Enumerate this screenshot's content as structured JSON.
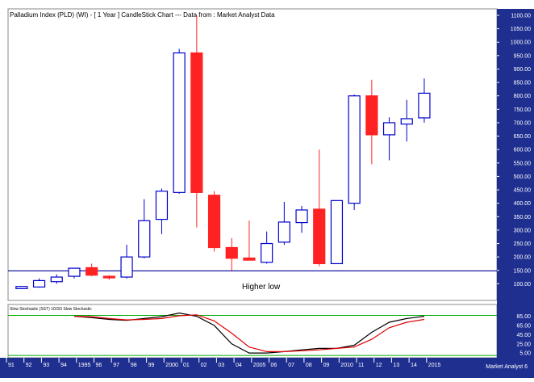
{
  "title": "Palladium Index (PLD) (WI) -  [ 1 Year ] CandleStick Chart --- Data from : Market Analyst Data",
  "annotation": "Higher low",
  "stochastic_title": "Slow Stochastic (SST) 10/3/3 Slow Stochastic",
  "footer_label": "Market Analyst 6",
  "colors": {
    "up": "#0000cc",
    "down": "#ff2222",
    "axis_bg": "#1f2f8f",
    "axis_text": "#ffffff",
    "hline": "#000099",
    "k_line": "#000000",
    "d_line": "#e00000",
    "level_line": "#00aa00"
  },
  "chart_data": [
    {
      "type": "candlestick",
      "ylim": [
        50,
        1100
      ],
      "y_ticks": [
        "1100.00",
        "1050.00",
        "1000.00",
        "950.00",
        "900.00",
        "850.00",
        "800.00",
        "750.00",
        "700.00",
        "650.00",
        "600.00",
        "550.00",
        "500.00",
        "450.00",
        "400.00",
        "350.00",
        "300.00",
        "250.00",
        "200.00",
        "150.00",
        "100.00"
      ],
      "x_labels": [
        "91",
        "92",
        "93",
        "94",
        "1995",
        "96",
        "97",
        "98",
        "99",
        "2000",
        "01",
        "02",
        "03",
        "04",
        "2005",
        "06",
        "07",
        "08",
        "09",
        "2010",
        "11",
        "12",
        "13",
        "14",
        "2015"
      ],
      "horizontal_line": 148,
      "candles": [
        {
          "o": 82,
          "h": 90,
          "l": 80,
          "c": 90
        },
        {
          "o": 88,
          "h": 120,
          "l": 85,
          "c": 112
        },
        {
          "o": 108,
          "h": 135,
          "l": 100,
          "c": 125
        },
        {
          "o": 128,
          "h": 160,
          "l": 120,
          "c": 158
        },
        {
          "o": 160,
          "h": 175,
          "l": 128,
          "c": 132
        },
        {
          "o": 128,
          "h": 132,
          "l": 115,
          "c": 122
        },
        {
          "o": 125,
          "h": 245,
          "l": 120,
          "c": 200
        },
        {
          "o": 200,
          "h": 415,
          "l": 195,
          "c": 335
        },
        {
          "o": 340,
          "h": 455,
          "l": 285,
          "c": 445
        },
        {
          "o": 440,
          "h": 975,
          "l": 435,
          "c": 960
        },
        {
          "o": 960,
          "h": 1100,
          "l": 310,
          "c": 440
        },
        {
          "o": 430,
          "h": 445,
          "l": 220,
          "c": 235
        },
        {
          "o": 235,
          "h": 270,
          "l": 150,
          "c": 195
        },
        {
          "o": 196,
          "h": 335,
          "l": 188,
          "c": 188
        },
        {
          "o": 180,
          "h": 295,
          "l": 175,
          "c": 250
        },
        {
          "o": 255,
          "h": 405,
          "l": 245,
          "c": 330
        },
        {
          "o": 328,
          "h": 390,
          "l": 290,
          "c": 375
        },
        {
          "o": 378,
          "h": 600,
          "l": 165,
          "c": 175
        },
        {
          "o": 175,
          "h": 410,
          "l": 175,
          "c": 410
        },
        {
          "o": 400,
          "h": 805,
          "l": 375,
          "c": 800
        },
        {
          "o": 800,
          "h": 860,
          "l": 545,
          "c": 655
        },
        {
          "o": 655,
          "h": 720,
          "l": 560,
          "c": 700
        },
        {
          "o": 695,
          "h": 785,
          "l": 630,
          "c": 715
        },
        {
          "o": 718,
          "h": 865,
          "l": 700,
          "c": 810
        }
      ]
    },
    {
      "type": "line",
      "title": "Slow Stochastic (SST) 10/3/3 Slow Stochastic",
      "ylim": [
        0,
        100
      ],
      "y_ticks": [
        "85.00",
        "65.00",
        "45.00",
        "25.00",
        "5.00"
      ],
      "level_lines": [
        85,
        5
      ],
      "series": [
        {
          "key": "k",
          "values": [
            null,
            null,
            null,
            85,
            82,
            78,
            76,
            80,
            84,
            92,
            85,
            65,
            25,
            5,
            5,
            8,
            12,
            15,
            15,
            22,
            50,
            72,
            80,
            85
          ]
        },
        {
          "key": "d",
          "values": [
            null,
            null,
            null,
            85,
            84,
            80,
            77,
            78,
            80,
            86,
            88,
            75,
            48,
            18,
            8,
            8,
            10,
            12,
            15,
            18,
            35,
            60,
            72,
            78
          ]
        }
      ]
    }
  ]
}
